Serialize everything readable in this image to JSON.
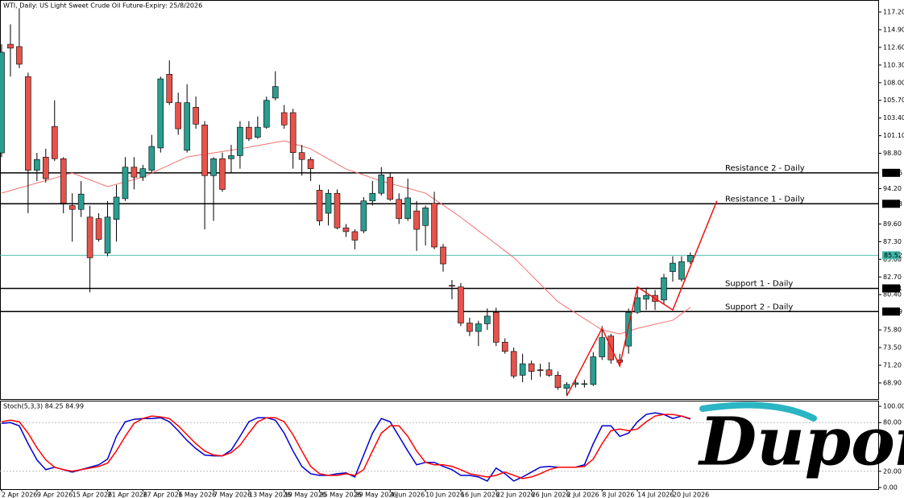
{
  "chart_data": [
    {
      "type": "candlestick",
      "title": "WTI, Daily:  US Light Sweet Crude Oil Future-Expiry: 25/8/2026",
      "categories": [
        "2 Apr 2026",
        null,
        null,
        null,
        "9 Apr 2026",
        null,
        null,
        null,
        "15 Apr 2026",
        null,
        null,
        null,
        "21 Apr 2026",
        null,
        null,
        null,
        "27 Apr 2026",
        null,
        null,
        null,
        "1 May 2026",
        null,
        null,
        null,
        "7 May 2026",
        null,
        null,
        null,
        "13 May 2026",
        null,
        null,
        null,
        "19 May 2026",
        null,
        null,
        null,
        "25 May 2026",
        null,
        null,
        null,
        "29 May 2026",
        null,
        null,
        null,
        "4 Jun 2026",
        null,
        null,
        null,
        "10 Jun 2026",
        null,
        null,
        null,
        "16 Jun 2026",
        null,
        null,
        null,
        "22 Jun 2026",
        null,
        null,
        null,
        "26 Jun 2026",
        null,
        null,
        null,
        "2 Jul 2026",
        null,
        null,
        null,
        "8 Jul 2026",
        null,
        null,
        null,
        "14 Jul 2026",
        null,
        null,
        null,
        "20 Jul 2026",
        null,
        null
      ],
      "open": [
        98.86,
        113.0,
        112.7,
        108.8,
        96.6,
        98.3,
        102.3,
        98.1,
        92.0,
        91.5,
        90.5,
        90.3,
        85.8,
        90.2,
        92.9,
        97.0,
        95.7,
        96.6,
        99.5,
        109.1,
        105.4,
        99.2,
        104.8,
        102.5,
        95.9,
        98.1,
        98.1,
        98.5,
        102.2,
        100.9,
        102.2,
        106.0,
        104.1,
        104.1,
        98.9,
        98.0,
        94.0,
        91.0,
        93.6,
        89.1,
        88.6,
        88.7,
        92.6,
        93.6,
        95.7,
        92.8,
        90.3,
        91.3,
        89.4,
        92.3,
        86.6,
        81.6,
        81.4,
        76.7,
        75.6,
        76.6,
        78.1,
        74.2,
        73.0,
        69.9,
        71.4,
        70.6,
        70.6,
        69.9,
        68.2,
        68.7,
        68.7,
        68.7,
        72.3,
        75.0,
        71.9,
        73.7,
        78.1,
        79.8,
        80.3,
        79.7,
        83.4,
        82.4,
        84.7
      ],
      "high": [
        113.0,
        115.6,
        117.7,
        109.3,
        98.86,
        99.4,
        105.7,
        98.3,
        93.6,
        95.2,
        92.0,
        91.0,
        92.6,
        94.7,
        98.3,
        98.3,
        97.3,
        101.2,
        108.8,
        110.9,
        106.7,
        107.8,
        106.2,
        103.0,
        98.3,
        98.9,
        99.9,
        103.0,
        103.0,
        103.6,
        106.2,
        109.5,
        105.1,
        104.6,
        99.9,
        98.3,
        94.7,
        94.1,
        94.1,
        89.6,
        88.9,
        93.1,
        95.2,
        97.0,
        96.2,
        93.6,
        95.5,
        92.6,
        92.0,
        93.8,
        87.0,
        82.3,
        81.9,
        77.4,
        77.0,
        78.6,
        78.7,
        74.7,
        73.5,
        72.7,
        71.8,
        71.4,
        71.6,
        70.4,
        69.0,
        69.5,
        69.3,
        72.9,
        76.3,
        75.3,
        72.7,
        78.6,
        81.3,
        81.3,
        81.0,
        83.1,
        85.4,
        85.4,
        85.9
      ],
      "low": [
        98.3,
        108.8,
        109.9,
        91.0,
        95.2,
        95.0,
        97.8,
        91.0,
        87.3,
        90.5,
        80.7,
        87.3,
        85.4,
        87.3,
        92.6,
        94.1,
        95.2,
        96.2,
        98.9,
        105.1,
        101.2,
        98.9,
        102.0,
        88.9,
        90.0,
        93.8,
        96.2,
        96.8,
        100.4,
        100.7,
        102.0,
        105.7,
        102.0,
        96.8,
        95.9,
        95.2,
        89.4,
        89.4,
        88.9,
        87.9,
        86.3,
        88.4,
        92.0,
        93.3,
        92.6,
        89.6,
        90.0,
        86.1,
        86.8,
        86.3,
        83.4,
        79.8,
        76.3,
        75.0,
        73.7,
        75.8,
        73.7,
        72.7,
        69.5,
        69.0,
        69.3,
        69.7,
        69.7,
        68.0,
        67.2,
        68.3,
        68.3,
        68.5,
        71.9,
        71.4,
        71.1,
        72.7,
        77.9,
        78.4,
        78.4,
        79.2,
        82.1,
        82.1,
        84.4
      ],
      "close": [
        111.96,
        112.5,
        110.4,
        96.6,
        98.0,
        95.5,
        98.1,
        92.3,
        91.5,
        93.5,
        85.2,
        87.6,
        90.5,
        93.1,
        97.0,
        95.7,
        96.8,
        99.7,
        108.5,
        105.4,
        102.0,
        105.4,
        102.6,
        95.9,
        98.1,
        94.1,
        98.5,
        102.2,
        100.7,
        102.2,
        105.7,
        107.5,
        102.5,
        98.9,
        98.0,
        96.8,
        90.0,
        93.6,
        89.1,
        88.6,
        87.5,
        92.6,
        93.6,
        96.0,
        92.8,
        90.3,
        93.0,
        88.9,
        91.7,
        86.6,
        84.4,
        81.5,
        76.7,
        75.6,
        76.6,
        77.6,
        74.2,
        73.0,
        69.8,
        71.4,
        70.4,
        70.5,
        69.9,
        68.3,
        68.7,
        68.9,
        68.8,
        72.3,
        74.8,
        71.9,
        71.6,
        78.1,
        80.0,
        80.3,
        79.5,
        82.6,
        84.5,
        84.7,
        85.52
      ],
      "up_color": "#2a9d8f",
      "down_color": "#e5534b",
      "overlay": {
        "color": "#f07070",
        "values": [
          93.62,
          93.95,
          94.28,
          94.6,
          94.93,
          95.26,
          95.58,
          95.91,
          96.24,
          95.8,
          95.35,
          94.91,
          94.46,
          94.77,
          95.09,
          95.4,
          95.71,
          96.23,
          96.76,
          97.28,
          97.81,
          98.33,
          98.51,
          98.68,
          98.86,
          99.03,
          99.21,
          99.38,
          99.59,
          99.8,
          100.01,
          100.22,
          100.43,
          100.08,
          99.73,
          99.38,
          98.73,
          98.07,
          97.42,
          96.76,
          96.37,
          95.98,
          95.58,
          95.19,
          94.88,
          94.56,
          94.25,
          93.93,
          93.62,
          92.83,
          92.05,
          91.26,
          90.47,
          89.6,
          88.72,
          87.85,
          86.98,
          86.1,
          85.23,
          84.08,
          82.93,
          81.77,
          80.62,
          79.47,
          78.74,
          78.0,
          77.27,
          76.53,
          75.8,
          75.54,
          75.28,
          75.65,
          76.01,
          76.27,
          76.54,
          76.8,
          77.06,
          77.9,
          78.74
        ]
      },
      "levels": [
        {
          "label": "Resistance 2 - Daily",
          "value": 96.26
        },
        {
          "label": "Resistance 1 - Daily",
          "value": 92.23
        },
        {
          "label": "Support 1 - Daily",
          "value": 81.21
        },
        {
          "label": "Support 2 - Daily",
          "value": 78.19
        }
      ],
      "last_price": 85.52,
      "last_price_color": "#3fb8a8",
      "trendline": {
        "color": "#ee1111",
        "x": [
          64,
          68,
          70,
          72,
          76,
          81
        ],
        "y": [
          67.2,
          76.0,
          71.1,
          81.4,
          78.4,
          92.6
        ]
      },
      "ylim": [
        66.8,
        118.77
      ],
      "yticks": [
        {
          "value": 117.2,
          "label": "117.20"
        },
        {
          "value": 114.9,
          "label": "114.90"
        },
        {
          "value": 112.6,
          "label": "112.60"
        },
        {
          "value": 110.3,
          "label": "110.30"
        },
        {
          "value": 108,
          "label": "108.00"
        },
        {
          "value": 105.7,
          "label": "105.70"
        },
        {
          "value": 103.4,
          "label": "103.40"
        },
        {
          "value": 101.1,
          "label": "101.10"
        },
        {
          "value": 98.8,
          "label": "98.80"
        },
        {
          "value": 94.2,
          "label": "94.20"
        },
        {
          "value": 89.6,
          "label": "89.60"
        },
        {
          "value": 87.3,
          "label": "87.30"
        },
        {
          "value": 85,
          "label": "85.00"
        },
        {
          "value": 82.7,
          "label": "82.70"
        },
        {
          "value": 80.4,
          "label": "80.40"
        },
        {
          "value": 75.8,
          "label": "75.80"
        },
        {
          "value": 73.5,
          "label": "73.50"
        },
        {
          "value": 71.2,
          "label": "71.20"
        },
        {
          "value": 68.9,
          "label": "68.90"
        }
      ]
    },
    {
      "type": "line",
      "title": "Stoch(5,3,3) 84.25 84.99",
      "series": [
        {
          "color": "#0000cd",
          "values": [
            79,
            80,
            76,
            54,
            34,
            22,
            25,
            22,
            19,
            22,
            25,
            28,
            35,
            63,
            81,
            84,
            85,
            85,
            86,
            81,
            70,
            58,
            48,
            40,
            39,
            39,
            46,
            63,
            81,
            86,
            86,
            83,
            67,
            45,
            26,
            17,
            15,
            15,
            17,
            18,
            13,
            40,
            67,
            85,
            81,
            63,
            45,
            28,
            31,
            31,
            26,
            22,
            15,
            15,
            13,
            8,
            24,
            17,
            8,
            13,
            19,
            25,
            26,
            25,
            25,
            25,
            28,
            54,
            76,
            76,
            63,
            67,
            81,
            90,
            92,
            90,
            85,
            88,
            84.25
          ]
        },
        {
          "color": "#ff0000",
          "values": [
            81,
            83,
            81,
            67,
            49,
            34,
            25,
            22,
            20,
            22,
            24,
            26,
            30,
            45,
            63,
            79,
            85,
            88,
            87,
            85,
            76,
            65,
            54,
            45,
            40,
            39,
            43,
            52,
            67,
            81,
            86,
            86,
            81,
            65,
            45,
            26,
            17,
            15,
            15,
            17,
            15,
            22,
            45,
            67,
            76,
            76,
            63,
            45,
            31,
            28,
            28,
            26,
            22,
            17,
            15,
            13,
            15,
            19,
            15,
            11,
            13,
            17,
            22,
            25,
            25,
            25,
            26,
            35,
            54,
            70,
            72,
            70,
            72,
            81,
            88,
            90,
            90,
            88,
            84.99
          ]
        }
      ],
      "ylim": [
        -2,
        107
      ],
      "yticks": [
        {
          "value": 100,
          "label": "100.00"
        },
        {
          "value": 80,
          "label": "80.00"
        },
        {
          "value": 20,
          "label": "20.00"
        },
        {
          "value": 0,
          "label": "0.00"
        }
      ],
      "watermark": "Dupoin",
      "watermark_color": "#2bb5c4"
    }
  ]
}
